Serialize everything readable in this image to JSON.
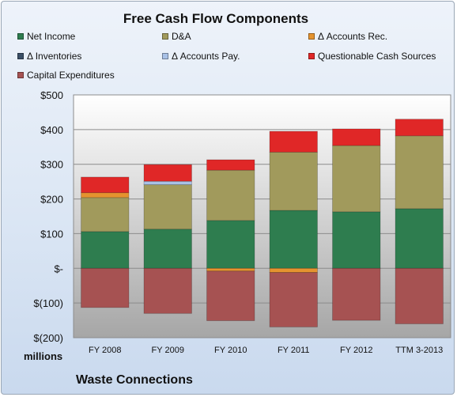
{
  "chart_data": {
    "type": "bar",
    "stacked": true,
    "title": "Free Cash Flow Components",
    "units_label": "millions",
    "footer_label": "Waste Connections",
    "categories": [
      "FY 2008",
      "FY 2009",
      "FY 2010",
      "FY 2011",
      "FY 2012",
      "TTM 3-2013"
    ],
    "ylim": [
      -200,
      500
    ],
    "yticks": [
      -200,
      -100,
      0,
      100,
      200,
      300,
      400,
      500
    ],
    "ytick_labels": [
      "$(200)",
      "$(100)",
      "$-",
      "$100",
      "$200",
      "$300",
      "$400",
      "$500"
    ],
    "grid": true,
    "legend_position": "top",
    "series": [
      {
        "name": "Net Income",
        "color": "#2e7d4f",
        "values": [
          106,
          113,
          138,
          167,
          163,
          172
        ]
      },
      {
        "name": "D&A",
        "color": "#a19a5c",
        "values": [
          98,
          128,
          145,
          168,
          191,
          210
        ]
      },
      {
        "name": "Δ Accounts Rec.",
        "color": "#e5932f",
        "values": [
          14,
          0,
          -8,
          -12,
          0,
          0
        ]
      },
      {
        "name": "Δ Inventories",
        "color": "#3b4f66",
        "values": [
          0,
          0,
          0,
          0,
          0,
          0
        ]
      },
      {
        "name": "Δ Accounts Pay.",
        "color": "#a8c1e6",
        "values": [
          0,
          10,
          0,
          0,
          0,
          0
        ]
      },
      {
        "name": "Questionable Cash Sources",
        "color": "#e02727",
        "values": [
          45,
          48,
          30,
          60,
          48,
          48
        ]
      },
      {
        "name": "Capital Expenditures",
        "color": "#a65252",
        "values": [
          -113,
          -130,
          -143,
          -157,
          -150,
          -160
        ]
      }
    ]
  }
}
